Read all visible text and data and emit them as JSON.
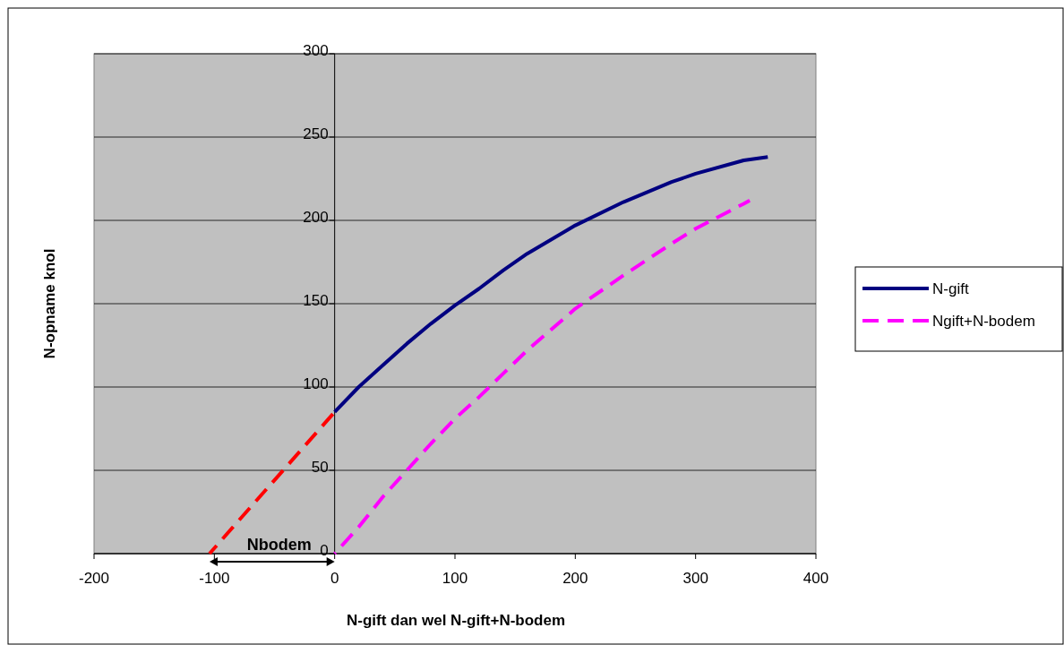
{
  "chart_data": {
    "type": "line",
    "xlabel": "N-gift dan wel N-gift+N-bodem",
    "ylabel": "N-opname knol",
    "xlim": [
      -200,
      400
    ],
    "xticks": [
      -200,
      -100,
      0,
      100,
      200,
      300,
      400
    ],
    "ylim": [
      0,
      300
    ],
    "yticks": [
      0,
      50,
      100,
      150,
      200,
      250,
      300
    ],
    "grid": "y",
    "legend": "right",
    "annotations": [
      "Nbodem"
    ],
    "series": [
      {
        "name": "N-gift",
        "color": "#000080",
        "line_style": "solid",
        "x": [
          0,
          20,
          40,
          60,
          80,
          100,
          120,
          140,
          160,
          200,
          240,
          280,
          300,
          340,
          360
        ],
        "values": [
          85,
          100,
          113,
          126,
          138,
          149,
          159,
          170,
          180,
          197,
          211,
          223,
          228,
          236,
          238
        ]
      },
      {
        "name": "Ngift+N-bodem",
        "color": "#ff00ff",
        "line_style": "dashed",
        "x": [
          0,
          20,
          40,
          60,
          80,
          100,
          120,
          140,
          160,
          200,
          240,
          280,
          300,
          340,
          345
        ],
        "values": [
          0,
          16,
          34,
          50,
          66,
          81,
          94,
          108,
          122,
          147,
          167,
          186,
          195,
          210,
          212
        ]
      },
      {
        "color": "#ff0000",
        "line_style": "dashed",
        "x": [
          -104,
          0
        ],
        "values": [
          0,
          85
        ]
      }
    ]
  }
}
